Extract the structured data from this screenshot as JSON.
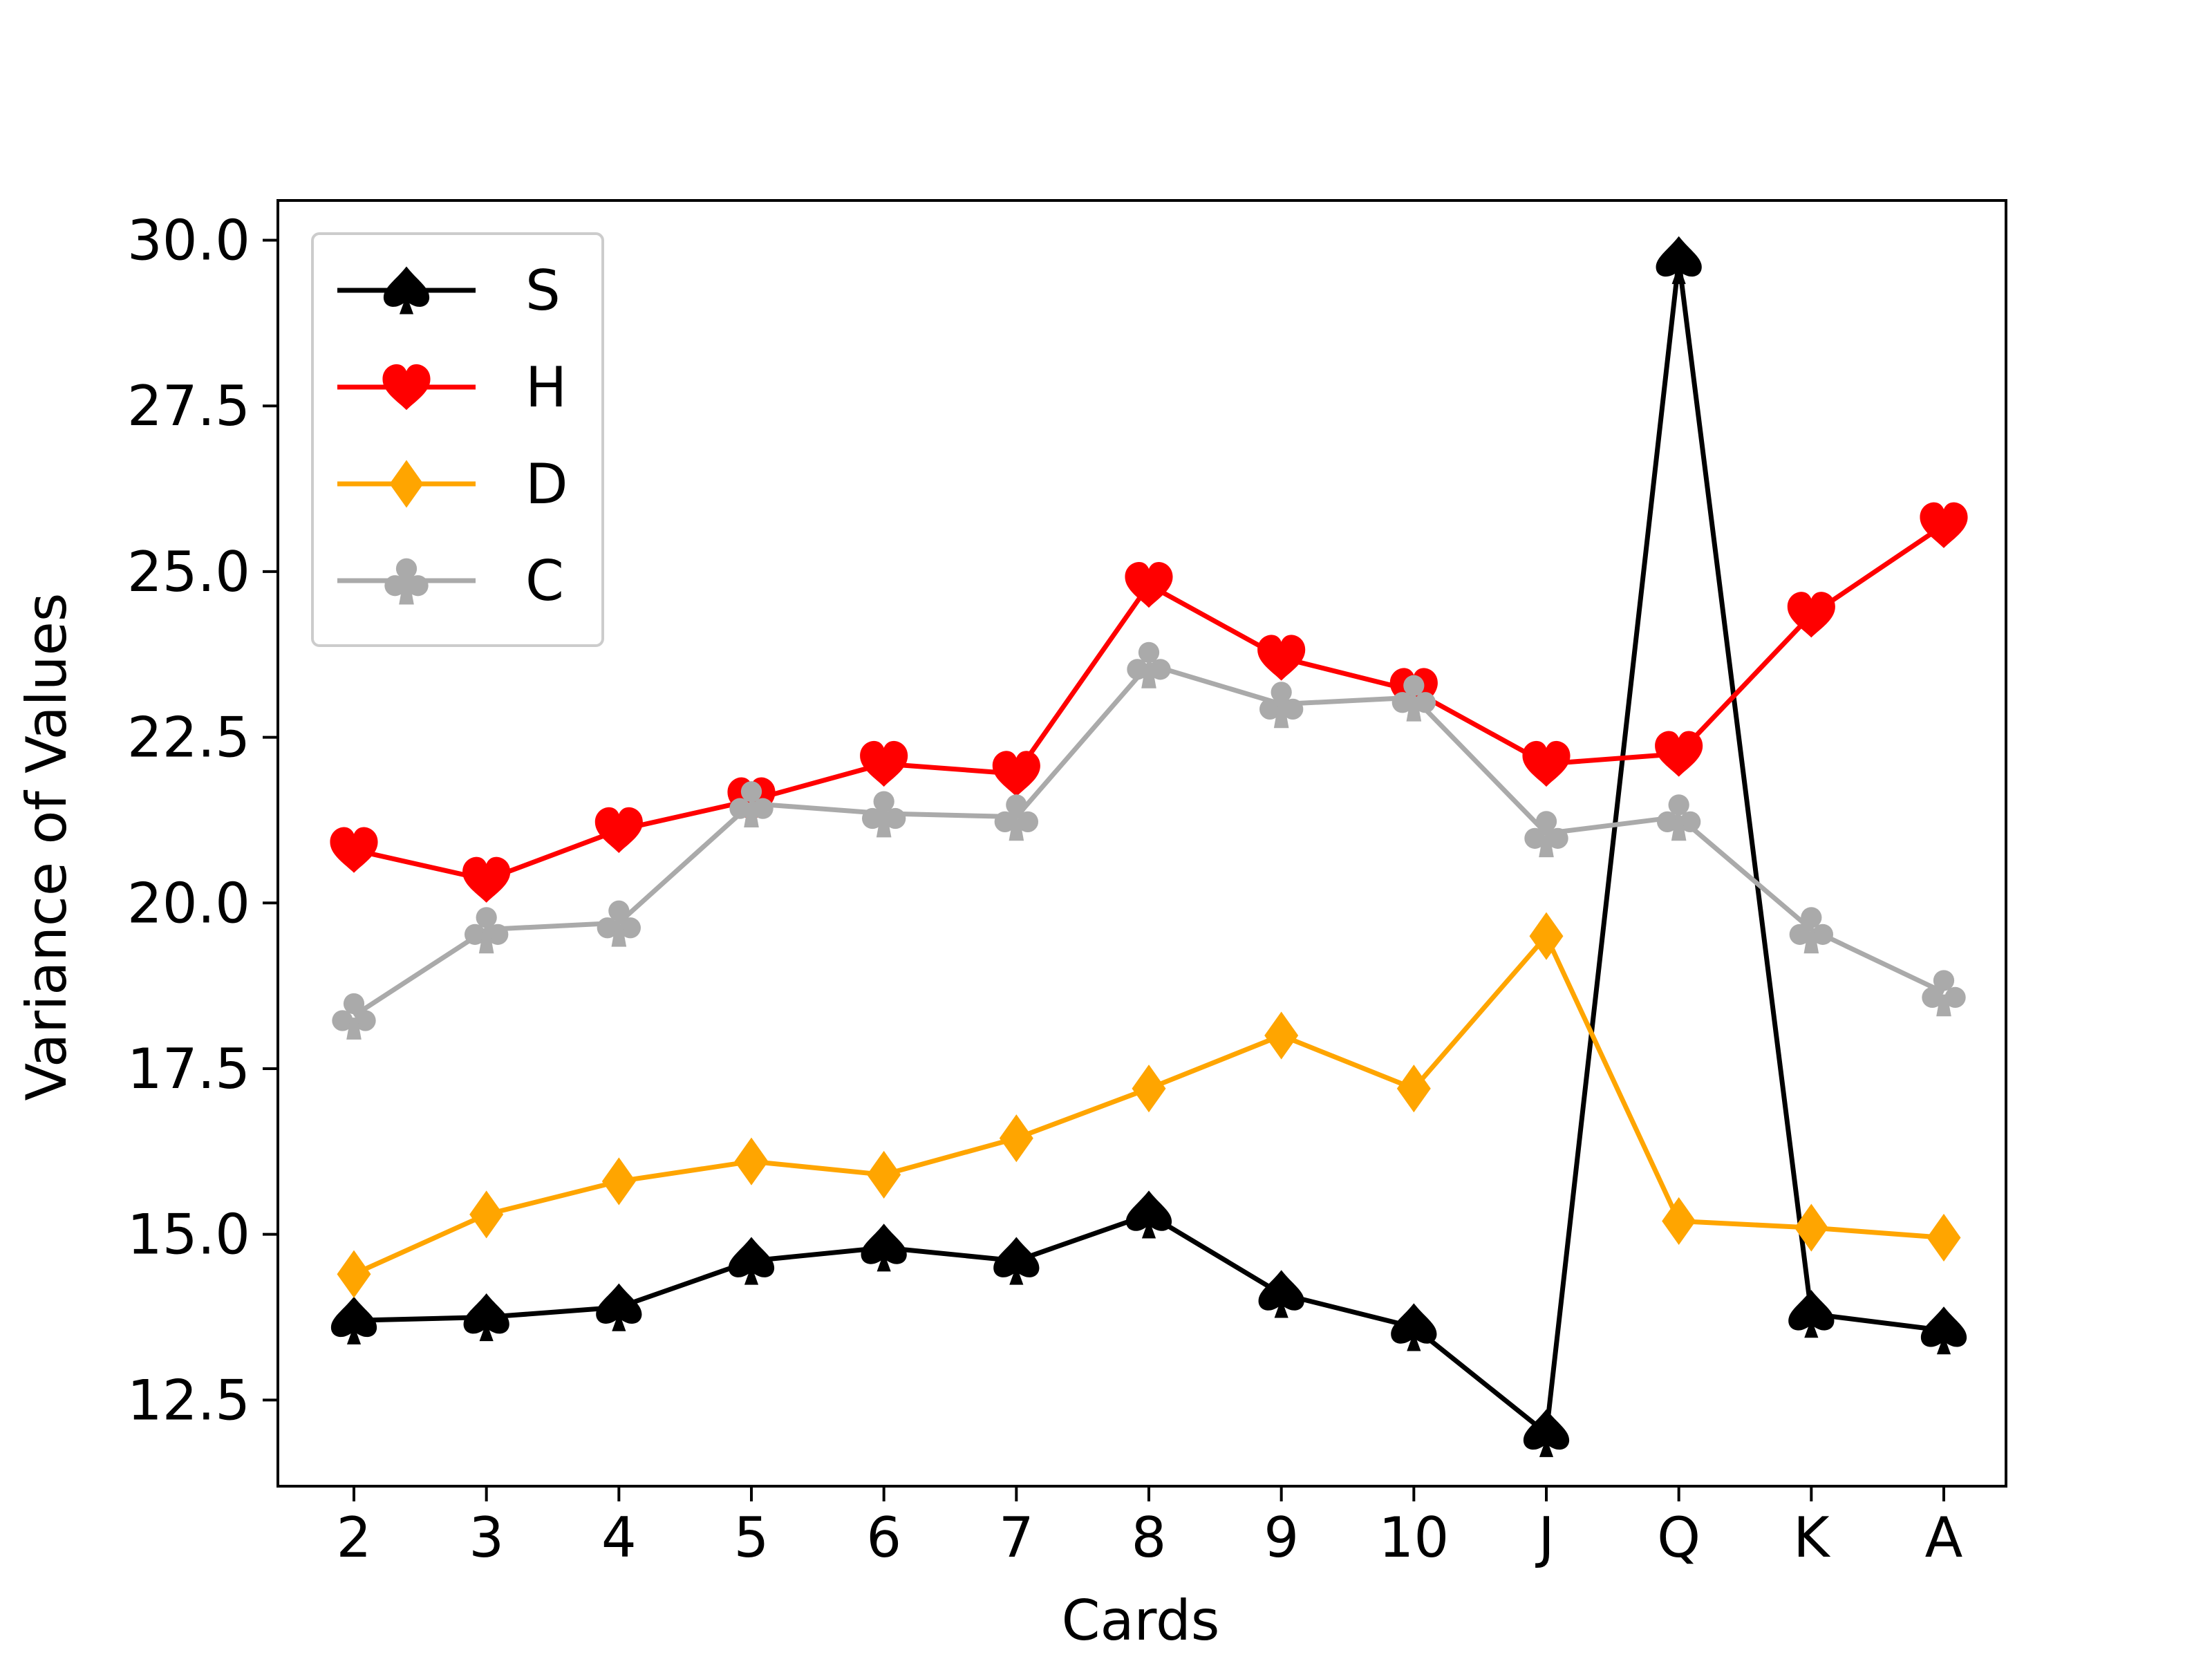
{
  "chart_data": {
    "type": "line",
    "title": "",
    "xlabel": "Cards",
    "ylabel": "Variance of Values",
    "categories": [
      "2",
      "3",
      "4",
      "5",
      "6",
      "7",
      "8",
      "9",
      "10",
      "J",
      "Q",
      "K",
      "A"
    ],
    "ylim": [
      11.2,
      30.6
    ],
    "yticks": [
      "12.5",
      "15.0",
      "17.5",
      "20.0",
      "22.5",
      "25.0",
      "27.5",
      "30.0"
    ],
    "grid": false,
    "legend_position": "top-left",
    "series": [
      {
        "name": "S",
        "color": "#000000",
        "marker": "spade-icon",
        "values": [
          13.7,
          13.75,
          13.9,
          14.6,
          14.8,
          14.6,
          15.3,
          14.1,
          13.6,
          12.0,
          29.7,
          13.8,
          13.55
        ]
      },
      {
        "name": "H",
        "color": "#ff0000",
        "marker": "heart-icon",
        "values": [
          20.8,
          20.35,
          21.1,
          21.55,
          22.1,
          21.95,
          24.8,
          23.7,
          23.2,
          22.1,
          22.25,
          24.35,
          25.7
        ]
      },
      {
        "name": "D",
        "color": "#ffa500",
        "marker": "diamond-icon",
        "values": [
          14.4,
          15.3,
          15.8,
          16.1,
          15.9,
          16.45,
          17.2,
          18.0,
          17.2,
          19.5,
          15.2,
          15.1,
          14.95
        ]
      },
      {
        "name": "C",
        "color": "#aaaaaa",
        "marker": "club-icon",
        "values": [
          18.3,
          19.6,
          19.7,
          21.5,
          21.35,
          21.3,
          23.6,
          23.0,
          23.1,
          21.05,
          21.3,
          19.6,
          18.65
        ]
      }
    ]
  }
}
